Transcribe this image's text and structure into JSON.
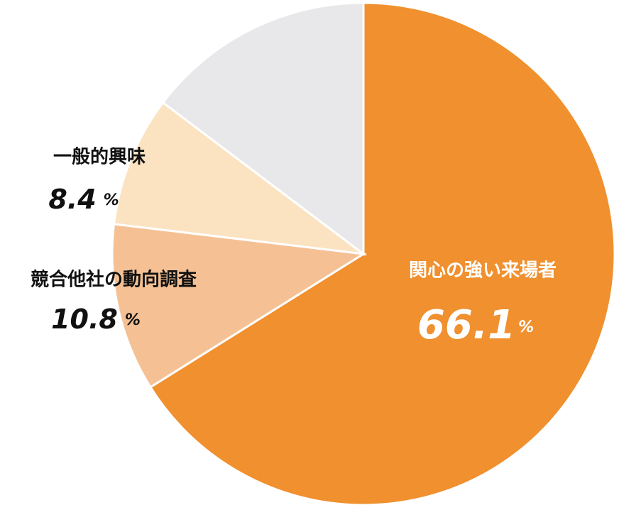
{
  "chart_data": {
    "type": "pie",
    "categories": [
      "関心の強い来場者",
      "競合他社の動向調査",
      "一般的興味",
      null
    ],
    "values": [
      66.1,
      10.8,
      8.4,
      14.7
    ],
    "unit": "%",
    "colors": [
      "#f0902f",
      "#f5c194",
      "#fbe3c2",
      "#e8e8ea"
    ]
  }
}
